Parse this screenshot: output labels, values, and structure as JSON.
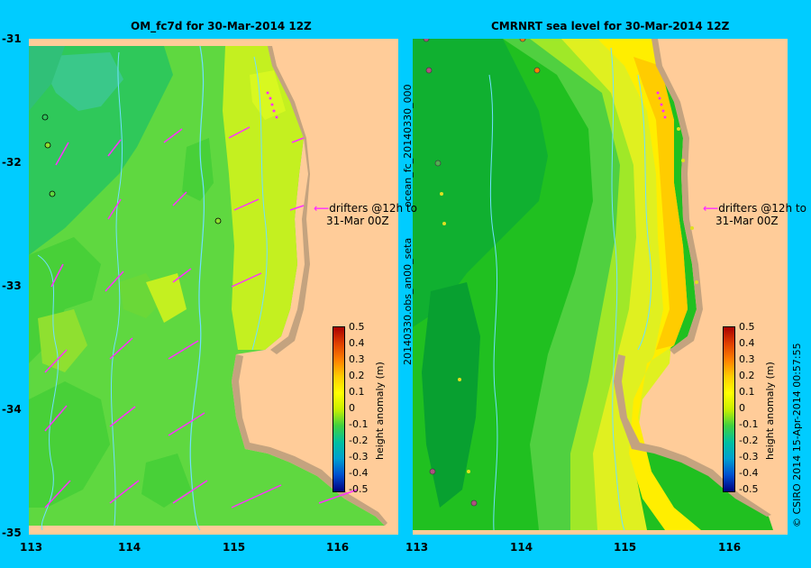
{
  "left_panel": {
    "title": "OM_fc7d for 30-Mar-2014 12Z"
  },
  "right_panel": {
    "title": "CMRNRT sea level  for 30-Mar-2014 12Z"
  },
  "y_ticks": [
    "-31",
    "-32",
    "-33",
    "-34",
    "-35"
  ],
  "x_ticks_left": [
    "113",
    "114",
    "115",
    "116"
  ],
  "x_ticks_right": [
    "113",
    "114",
    "115",
    "116"
  ],
  "colorbar": {
    "label": "height anomaly (m)",
    "ticks": [
      "0.5",
      "0.4",
      "0.3",
      "0.2",
      "0.1",
      "0",
      "-0.1",
      "-0.2",
      "-0.3",
      "-0.4",
      "-0.5"
    ]
  },
  "annotation": {
    "line1": "drifters @12h to",
    "line2": "31-Mar 00Z"
  },
  "side_label_left": "20140330.obs_an00_seta",
  "side_label_top": "ocean_fc_20140330_000",
  "credit": "© CSIRO 2014   15-Apr-2014 00:57:55",
  "colors": {
    "background": "#00ccff",
    "land": "#ffcc99",
    "shelf": "#c4a37f"
  }
}
